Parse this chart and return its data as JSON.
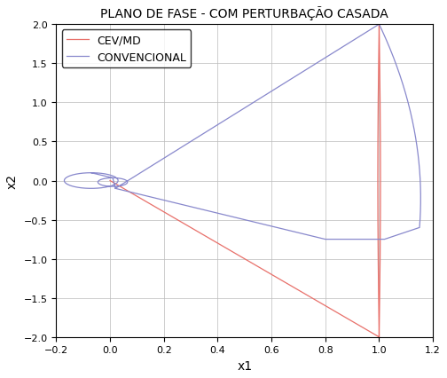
{
  "title": "PLANO DE FASE - COM PERTURBAÇÃO CASADA",
  "xlabel": "x1",
  "ylabel": "x2",
  "xlim": [
    -0.2,
    1.2
  ],
  "ylim": [
    -2.0,
    2.0
  ],
  "xticks": [
    -0.2,
    0.0,
    0.2,
    0.4,
    0.6,
    0.8,
    1.0,
    1.2
  ],
  "yticks": [
    -2.0,
    -1.5,
    -1.0,
    -0.5,
    0.0,
    0.5,
    1.0,
    1.5,
    2.0
  ],
  "cev_color": "#E8706A",
  "conv_color": "#8888CC",
  "legend_labels": [
    "CEV/MD",
    "CONVENCIONAL"
  ],
  "background_color": "#FFFFFF",
  "grid_color": "#BBBBBB",
  "title_fontsize": 10,
  "label_fontsize": 10
}
